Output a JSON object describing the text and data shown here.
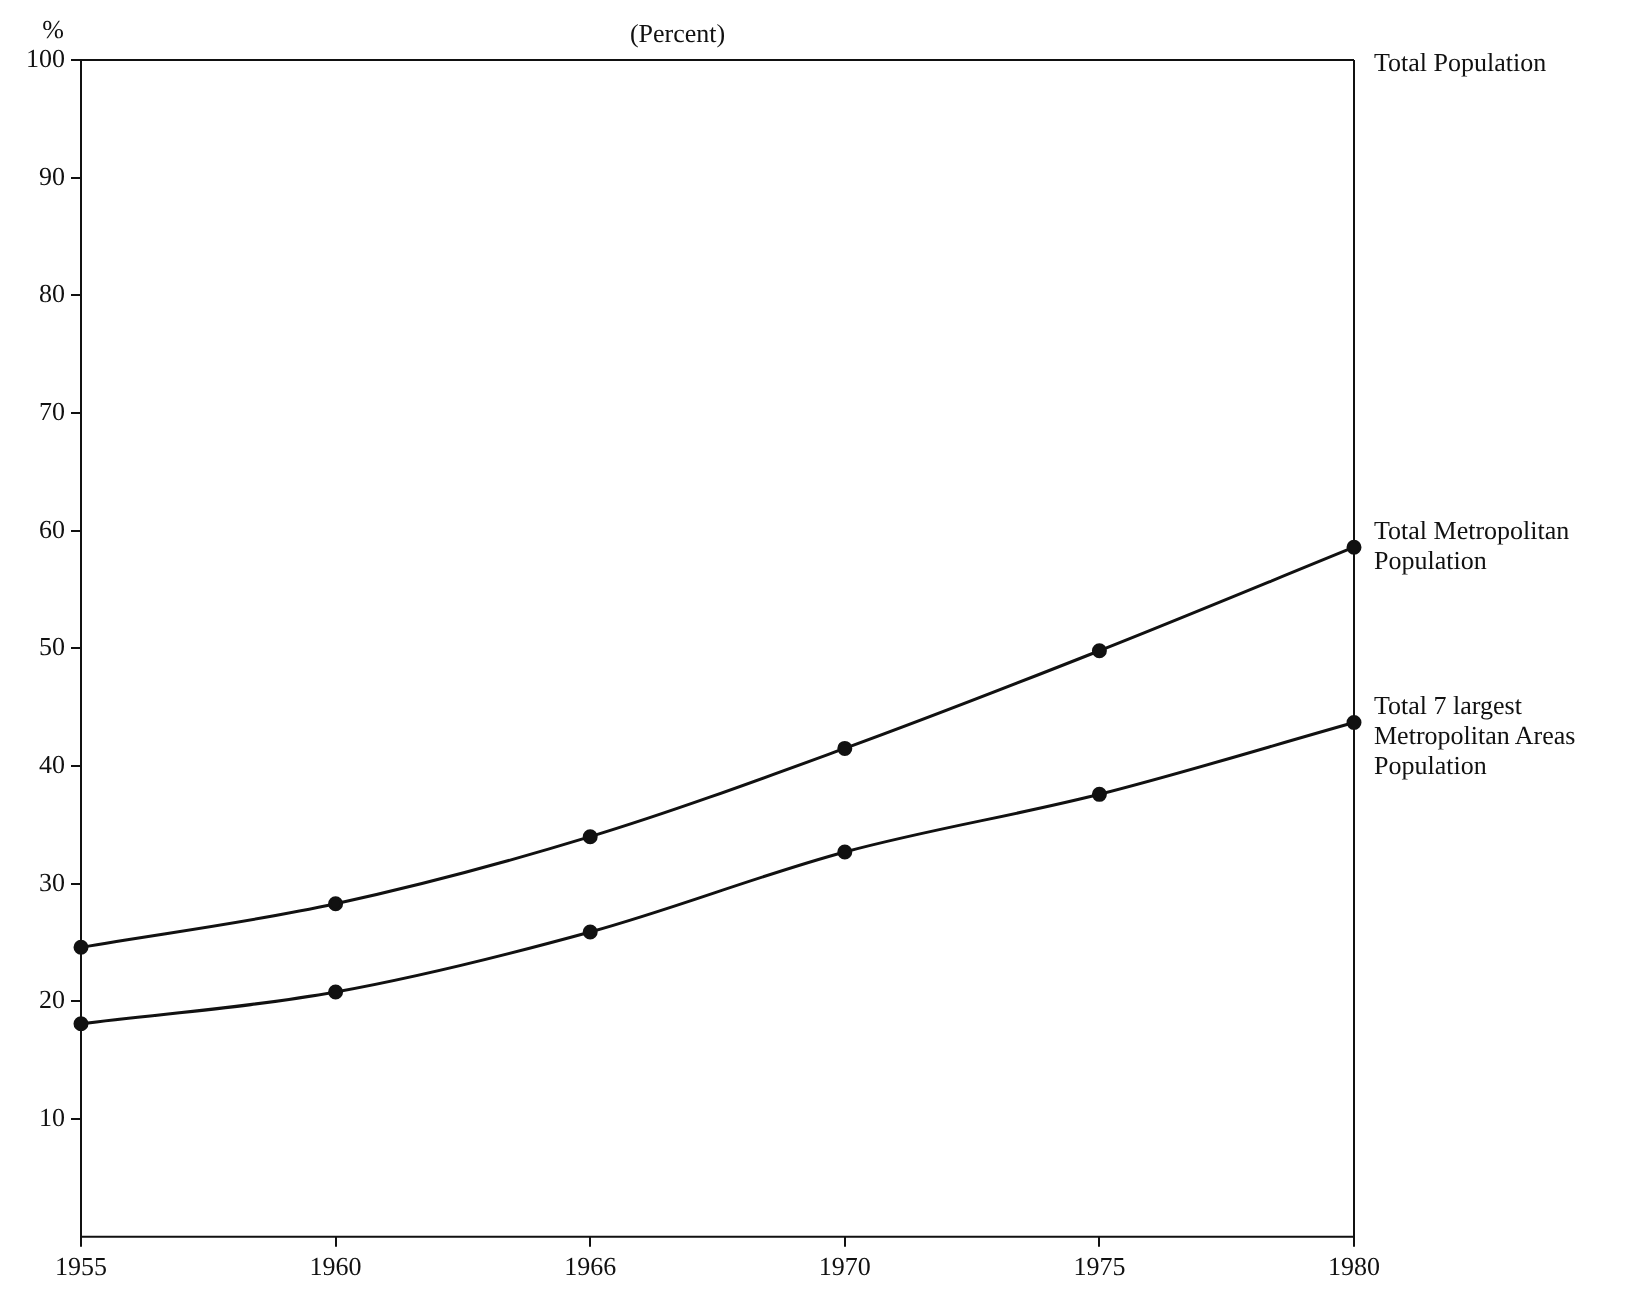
{
  "chart_data": {
    "type": "line",
    "title": "(Percent)",
    "ylabel": "%",
    "categories": [
      "1955",
      "1960",
      "1966",
      "1970",
      "1975",
      "1980"
    ],
    "series": [
      {
        "name": "Total Metropolitan Population",
        "color": "#111111",
        "values": [
          24.6,
          28.3,
          34,
          41.5,
          49.8,
          58.6
        ]
      },
      {
        "name": "Total 7 largest Metropolitan Areas Population",
        "color": "#111111",
        "values": [
          18.1,
          20.8,
          25.9,
          32.7,
          37.6,
          43.7
        ]
      }
    ],
    "ylim": [
      0,
      100
    ],
    "yticks": [
      10,
      20,
      30,
      40,
      50,
      60,
      70,
      80,
      90,
      100
    ],
    "ref_lines": [
      {
        "axis": "y",
        "value": 100,
        "label": "Total Population"
      }
    ],
    "grid": false,
    "legend": false,
    "marker": "circle",
    "line_style": "solid"
  }
}
